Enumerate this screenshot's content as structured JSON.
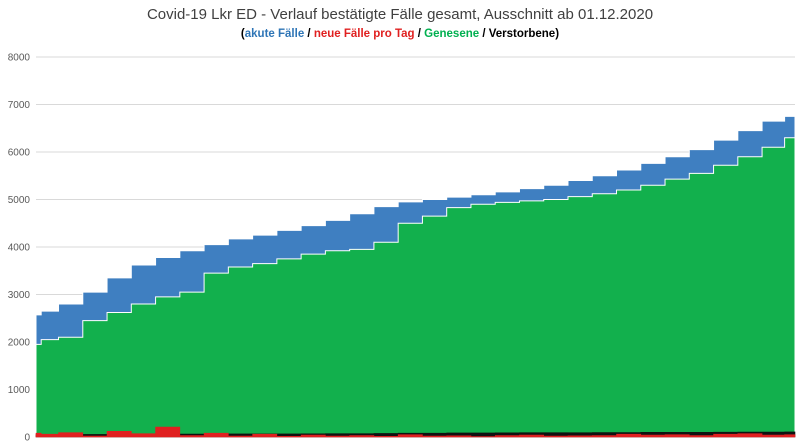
{
  "chart_data": {
    "type": "area",
    "title": "Covid-19 Lkr ED - Verlauf bestätigte Fälle gesamt, Ausschnitt ab 01.12.2020",
    "subtitle_parts": [
      {
        "text": "(",
        "color": "#000000"
      },
      {
        "text": "akute Fälle",
        "color": "#2e75b6"
      },
      {
        "text": " / ",
        "color": "#000000"
      },
      {
        "text": "neue Fälle pro Tag",
        "color": "#e02020"
      },
      {
        "text": " / ",
        "color": "#000000"
      },
      {
        "text": "Genesene",
        "color": "#00b050"
      },
      {
        "text": " / ",
        "color": "#000000"
      },
      {
        "text": "Verstorbene",
        "color": "#000000"
      },
      {
        "text": ")",
        "color": "#000000"
      }
    ],
    "ylim": [
      0,
      8000
    ],
    "yticks": [
      0,
      1000,
      2000,
      3000,
      4000,
      5000,
      6000,
      7000,
      8000
    ],
    "grid": true,
    "x": [
      0,
      3,
      10,
      17,
      24,
      31,
      38,
      45,
      52,
      59,
      66,
      73,
      80,
      87,
      94,
      101,
      108,
      115,
      122,
      129,
      136,
      143,
      150,
      157,
      164,
      171,
      178,
      185,
      192,
      199,
      206,
      213,
      219
    ],
    "series": [
      {
        "name": "Gesamt (akute Fälle)",
        "color": "#3f7fc1",
        "values": [
          2570,
          2650,
          2800,
          3050,
          3350,
          3620,
          3780,
          3920,
          4050,
          4170,
          4250,
          4350,
          4450,
          4560,
          4700,
          4850,
          4950,
          5000,
          5050,
          5100,
          5160,
          5230,
          5300,
          5400,
          5500,
          5620,
          5760,
          5900,
          6050,
          6250,
          6450,
          6650,
          6750
        ]
      },
      {
        "name": "Genesene",
        "color": "#12b04d",
        "values": [
          1950,
          2050,
          2100,
          2450,
          2620,
          2800,
          2950,
          3050,
          3450,
          3580,
          3650,
          3750,
          3850,
          3920,
          3950,
          4100,
          4500,
          4650,
          4830,
          4900,
          4940,
          4970,
          5000,
          5060,
          5120,
          5200,
          5300,
          5430,
          5550,
          5720,
          5900,
          6100,
          6300
        ]
      },
      {
        "name": "Verstorbene",
        "color": "#111111",
        "values": [
          50,
          50,
          55,
          55,
          60,
          60,
          60,
          62,
          62,
          65,
          65,
          65,
          68,
          70,
          70,
          75,
          80,
          80,
          85,
          85,
          88,
          90,
          90,
          92,
          95,
          95,
          98,
          100,
          100,
          102,
          105,
          105,
          108
        ]
      },
      {
        "name": "neue Fälle pro Tag",
        "color": "#e02020",
        "values": [
          80,
          60,
          90,
          20,
          120,
          70,
          210,
          30,
          80,
          20,
          60,
          15,
          40,
          20,
          30,
          15,
          50,
          20,
          25,
          10,
          30,
          40,
          20,
          25,
          30,
          60,
          40,
          50,
          30,
          60,
          70,
          40,
          50
        ]
      }
    ]
  }
}
